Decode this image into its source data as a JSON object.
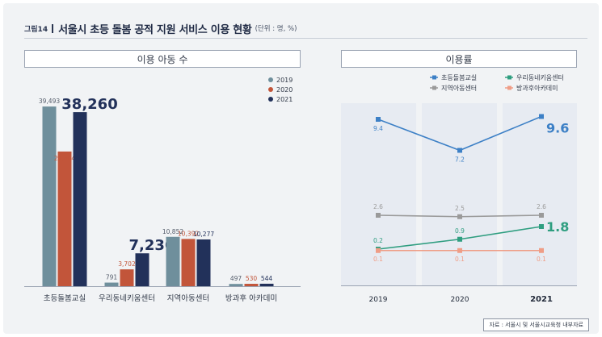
{
  "figure": {
    "label": "그림14",
    "title": "서울시 초등 돌봄 공적 지원 서비스 이용 현황",
    "unit": "(단위 : 명, %)",
    "source": "자료 : 서울시 및 서울시교육청 내부자료"
  },
  "colors": {
    "bar_2019": "#6f8f9c",
    "bar_2020": "#c2553a",
    "bar_2021": "#22315a",
    "line_choding": "#3d80c6",
    "line_uridong": "#2f9e80",
    "line_jiyeok": "#9a9a9a",
    "line_banggwa": "#ef9d86",
    "panel_bg": "#e7ebf2"
  },
  "chart_data": [
    {
      "type": "bar",
      "title": "이용 아동 수",
      "categories": [
        "초등돌봄교실",
        "우리동네키움센터",
        "지역아동센터",
        "방과후 아카데미"
      ],
      "series": [
        {
          "name": "2019",
          "values": [
            39493,
            791,
            10852,
            497
          ],
          "labels": [
            "39,493",
            "791",
            "10,852",
            "497"
          ]
        },
        {
          "name": "2020",
          "values": [
            29604,
            3702,
            10392,
            530
          ],
          "labels": [
            "29,604",
            "3,702",
            "10,392",
            "530"
          ]
        },
        {
          "name": "2021",
          "values": [
            38260,
            7230,
            10277,
            544
          ],
          "labels": [
            "38,260",
            "7,230",
            "10,277",
            "544"
          ]
        }
      ],
      "ylim": [
        0,
        42000
      ],
      "legend": "top-right"
    },
    {
      "type": "line",
      "title": "이용률",
      "x": [
        "2019",
        "2020",
        "2021"
      ],
      "series": [
        {
          "name": "초등돌봄교실",
          "values": [
            9.4,
            7.2,
            9.6
          ],
          "labels": [
            "9.4",
            "7.2",
            "9.6"
          ]
        },
        {
          "name": "우리동네키움센터",
          "values": [
            0.2,
            0.9,
            1.8
          ],
          "labels": [
            "0.2",
            "0.9",
            "1.8"
          ]
        },
        {
          "name": "지역아동센터",
          "values": [
            2.6,
            2.5,
            2.6
          ],
          "labels": [
            "2.6",
            "2.5",
            "2.6"
          ]
        },
        {
          "name": "방과후아카데미",
          "values": [
            0.1,
            0.1,
            0.1
          ],
          "labels": [
            "0.1",
            "0.1",
            "0.1"
          ]
        }
      ],
      "legend": "top"
    }
  ]
}
